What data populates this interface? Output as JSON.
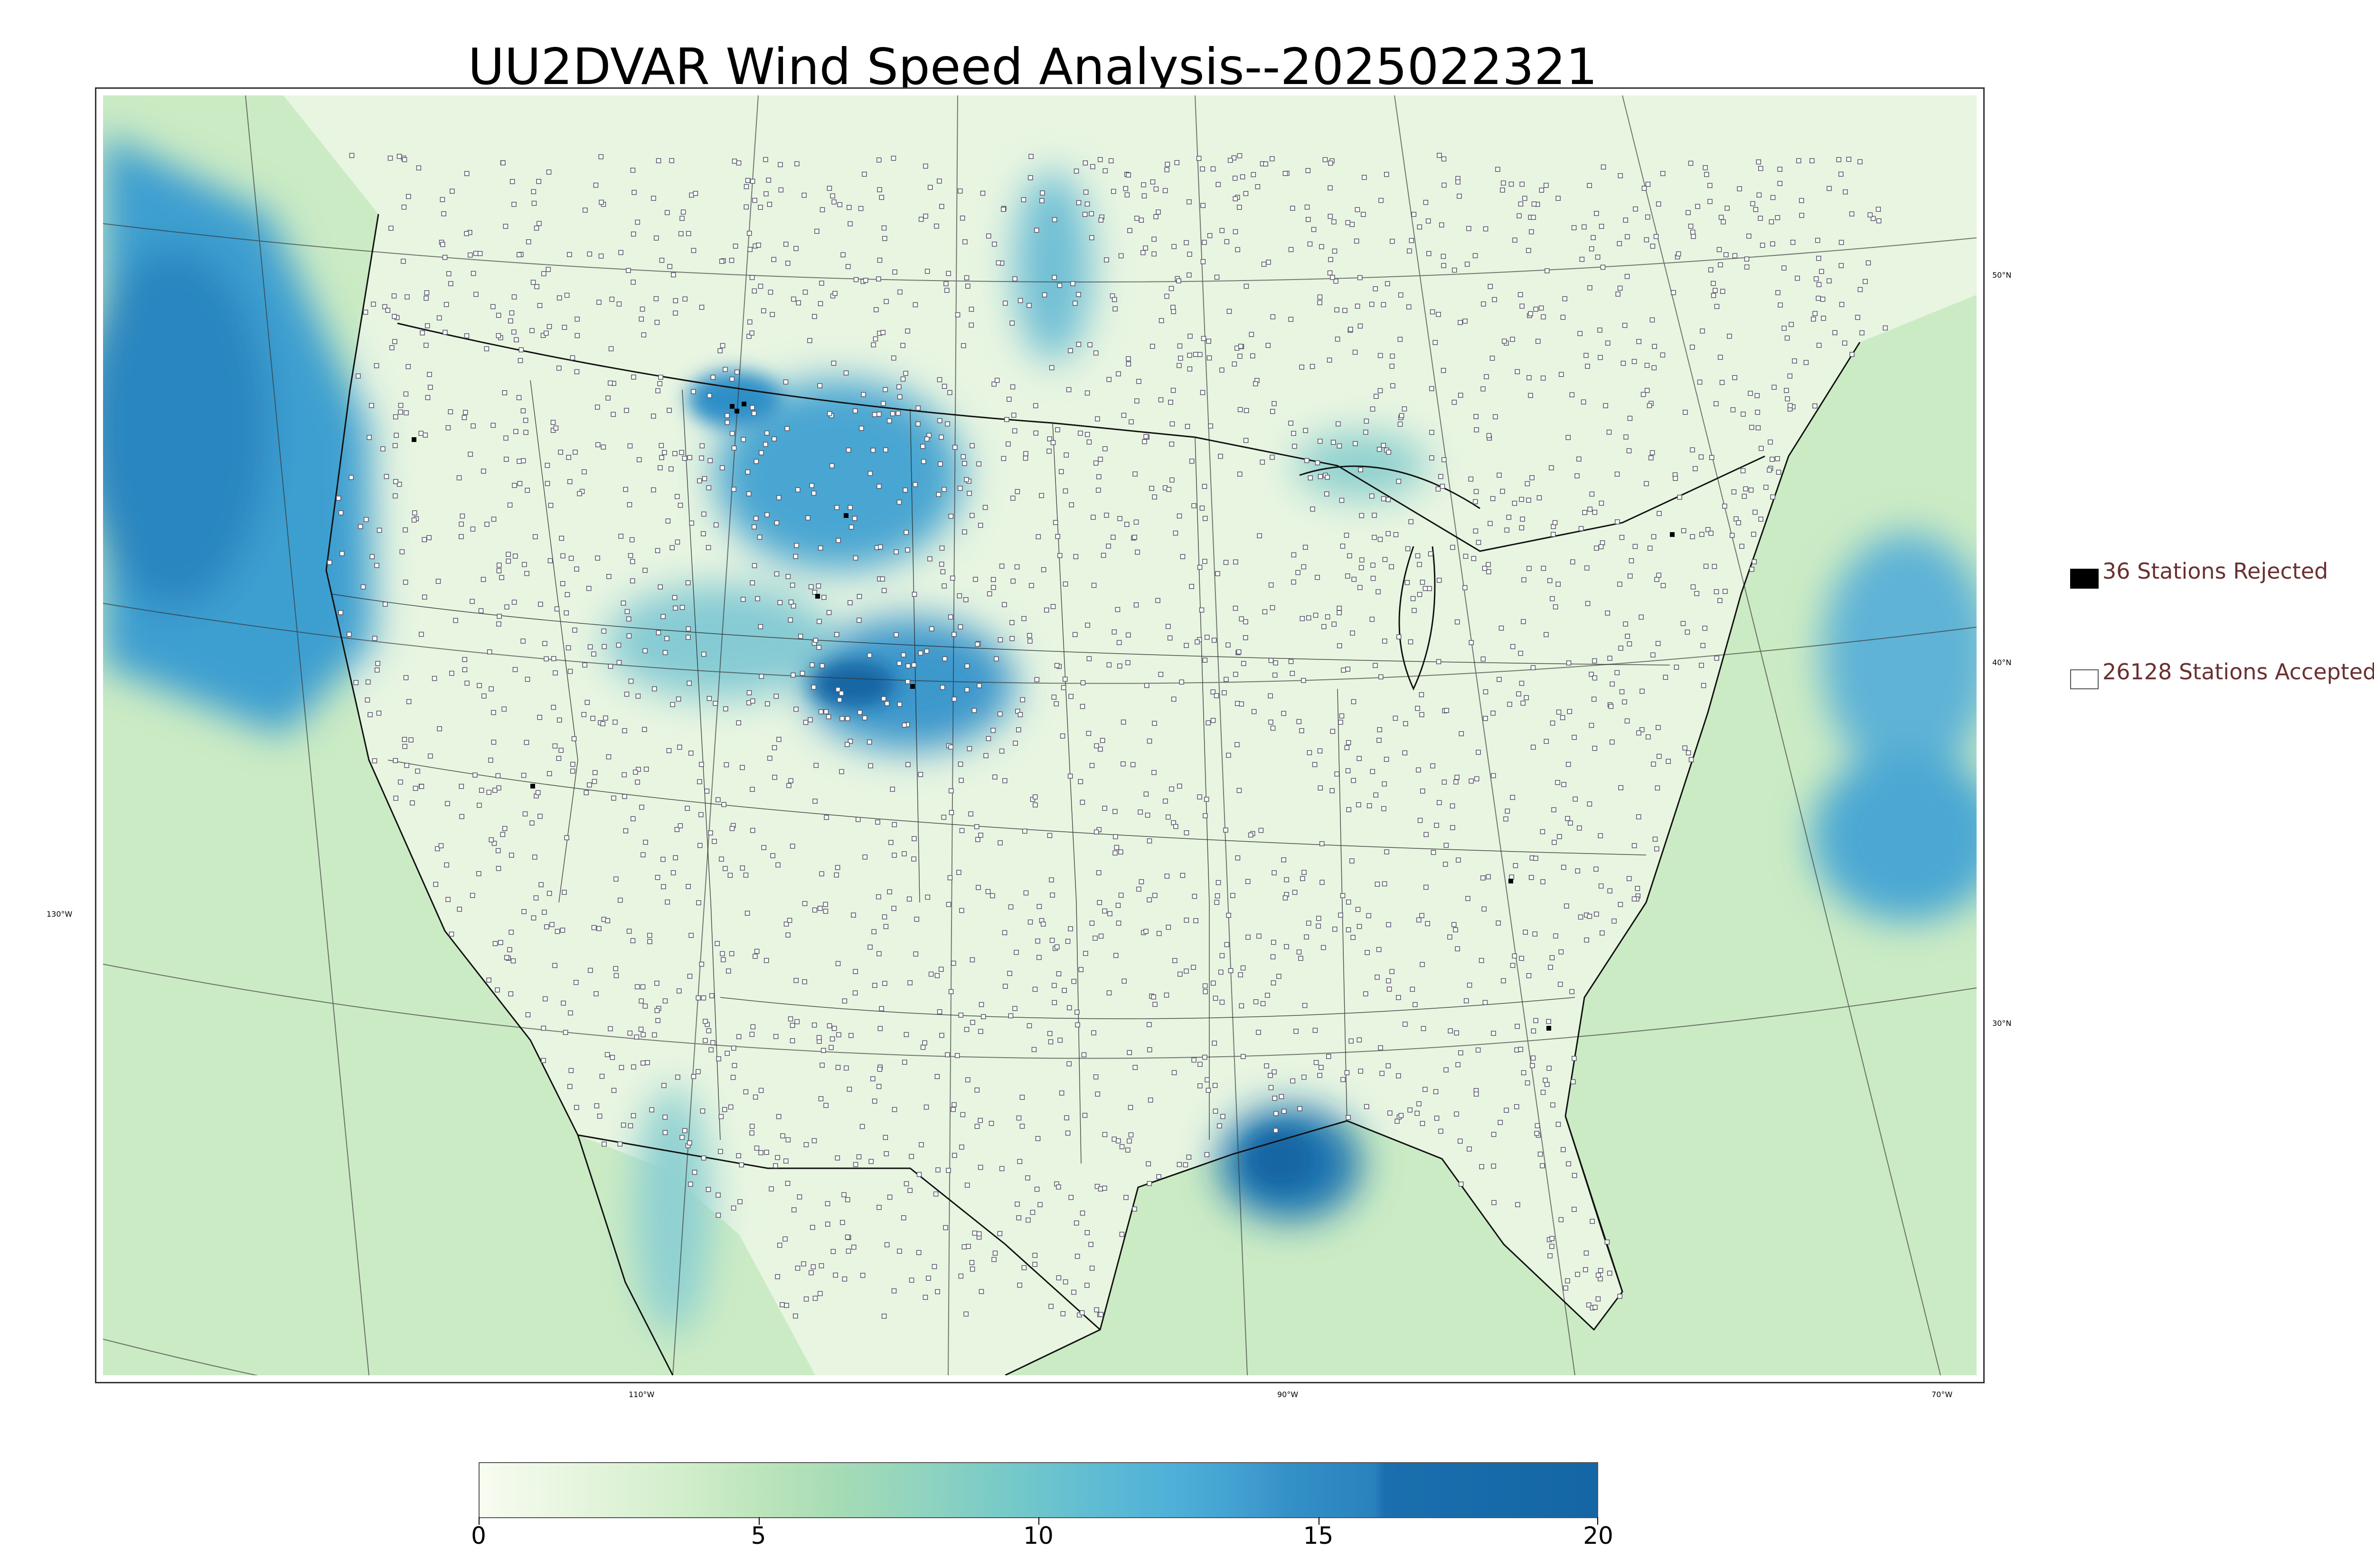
{
  "title": "UU2DVAR Wind Speed Analysis--2025022321",
  "map": {
    "lat_labels": [
      "50°N",
      "40°N",
      "30°N"
    ],
    "lon_labels": [
      "130°W",
      "110°W",
      "90°W",
      "70°W"
    ],
    "colors": {
      "land_base": "#e6f4de",
      "ocean_base": "#c9eac2",
      "strong": "#2e8fc8",
      "very_strong": "#1466a4",
      "moderate": "#7fc7cf",
      "light": "#b8e3b7",
      "station_edge": "#555566"
    }
  },
  "legend": {
    "rejected_label": "36 Stations Rejected",
    "accepted_label": "26128 Stations Accepted",
    "rejected_color": "#000000",
    "accepted_color": "#ffffff"
  },
  "colorbar": {
    "min": 0,
    "max": 20,
    "ticks": [
      "0",
      "5",
      "10",
      "15",
      "20"
    ],
    "colormap": "GnBu"
  }
}
